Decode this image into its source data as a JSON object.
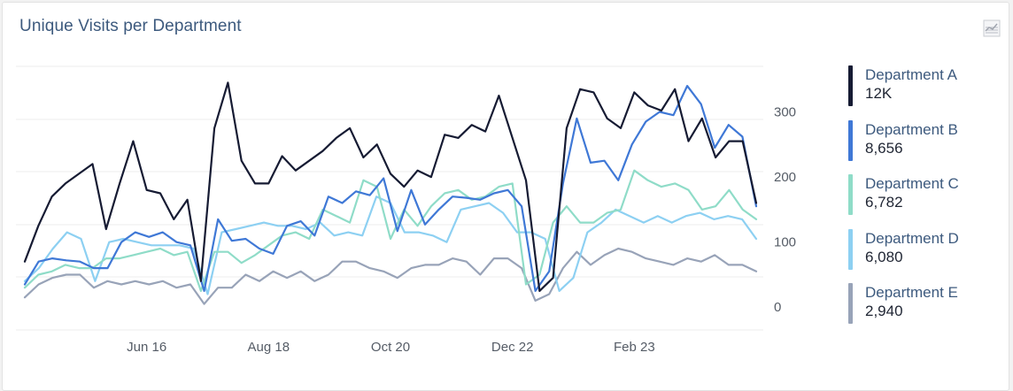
{
  "header": {
    "title": "Unique Visits per Department",
    "icon": "chart-type-icon"
  },
  "colors": {
    "Department A": "#161b33",
    "Department B": "#3f78d6",
    "Department C": "#8fdcc8",
    "Department D": "#8dd0f2",
    "Department E": "#98a3b8",
    "grid": "#ececec",
    "tick": "#555c66"
  },
  "legend": [
    {
      "name": "Department A",
      "value": "12K"
    },
    {
      "name": "Department B",
      "value": "8,656"
    },
    {
      "name": "Department C",
      "value": "6,782"
    },
    {
      "name": "Department D",
      "value": "6,080"
    },
    {
      "name": "Department E",
      "value": "2,940"
    }
  ],
  "chart_data": {
    "type": "line",
    "title": "Unique Visits per Department",
    "xlabel": "",
    "ylabel": "",
    "x_tick_labels": [
      "Jun 16",
      "Aug 18",
      "Oct 20",
      "Dec 22",
      "Feb 23"
    ],
    "x_tick_positions": [
      9,
      18,
      27,
      36,
      45
    ],
    "y_ticks": [
      0,
      100,
      200,
      300
    ],
    "ylim": [
      -35,
      370
    ],
    "grid": true,
    "legend_position": "right",
    "series": [
      {
        "name": "Department A",
        "values": [
          70,
          125,
          170,
          190,
          205,
          220,
          120,
          190,
          255,
          180,
          175,
          135,
          165,
          40,
          275,
          345,
          225,
          190,
          190,
          232,
          210,
          225,
          240,
          260,
          275,
          230,
          250,
          205,
          185,
          210,
          200,
          265,
          260,
          280,
          270,
          325,
          260,
          195,
          25,
          45,
          275,
          335,
          330,
          290,
          275,
          330,
          310,
          302,
          335,
          255,
          290,
          230,
          255,
          255,
          160
        ]
      },
      {
        "name": "Department B",
        "values": [
          35,
          70,
          75,
          72,
          70,
          60,
          60,
          100,
          115,
          108,
          115,
          100,
          95,
          25,
          135,
          102,
          105,
          90,
          82,
          125,
          132,
          110,
          170,
          160,
          178,
          172,
          198,
          117,
          180,
          127,
          150,
          170,
          168,
          165,
          175,
          180,
          155,
          25,
          55,
          190,
          290,
          222,
          225,
          195,
          250,
          285,
          300,
          295,
          340,
          312,
          245,
          280,
          262,
          155
        ]
      },
      {
        "name": "Department C",
        "values": [
          30,
          50,
          55,
          65,
          60,
          60,
          75,
          75,
          80,
          85,
          90,
          80,
          85,
          25,
          85,
          85,
          68,
          80,
          95,
          110,
          115,
          105,
          150,
          140,
          130,
          195,
          185,
          105,
          150,
          125,
          155,
          175,
          180,
          165,
          170,
          185,
          190,
          35,
          50,
          130,
          155,
          130,
          130,
          145,
          150,
          210,
          195,
          185,
          190,
          180,
          150,
          155,
          180,
          150,
          135
        ]
      },
      {
        "name": "Department D",
        "values": [
          40,
          60,
          90,
          115,
          105,
          40,
          100,
          105,
          100,
          95,
          95,
          95,
          90,
          20,
          115,
          120,
          125,
          130,
          125,
          125,
          120,
          130,
          110,
          115,
          110,
          170,
          160,
          115,
          115,
          110,
          100,
          150,
          155,
          160,
          145,
          115,
          115,
          105,
          25,
          45,
          115,
          130,
          150,
          140,
          130,
          140,
          130,
          140,
          145,
          135,
          140,
          135,
          105
        ]
      },
      {
        "name": "Department E",
        "values": [
          15,
          35,
          45,
          50,
          50,
          30,
          40,
          35,
          40,
          35,
          40,
          30,
          35,
          5,
          30,
          30,
          50,
          40,
          55,
          45,
          55,
          40,
          50,
          70,
          70,
          60,
          55,
          45,
          60,
          65,
          65,
          75,
          70,
          50,
          75,
          75,
          60,
          10,
          20,
          60,
          85,
          65,
          80,
          90,
          85,
          75,
          70,
          65,
          75,
          70,
          80,
          65,
          65,
          55
        ]
      }
    ]
  }
}
